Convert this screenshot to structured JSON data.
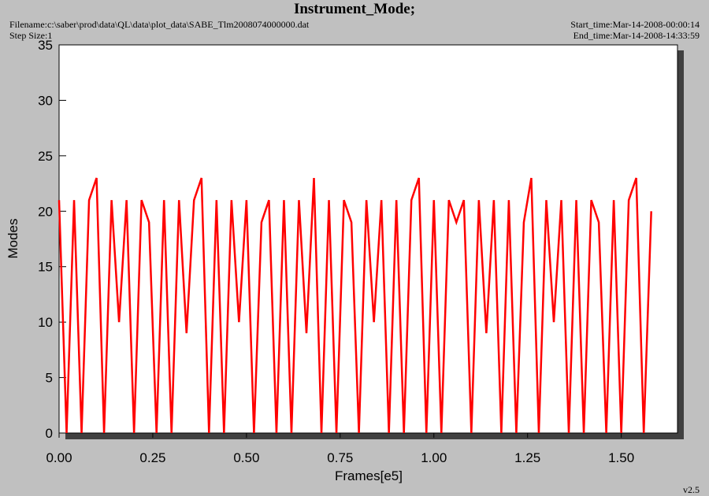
{
  "chart_data": {
    "type": "line",
    "title": "Instrument_Mode;",
    "filename": "Filename:c:\\saber\\prod\\data\\QL\\data\\plot_data\\SABE_Tlm2008074000000.dat",
    "step_size": "Step Size:1",
    "start_time": "Start_time:Mar-14-2008-00:00:14",
    "end_time": "End_time:Mar-14-2008-14:33:59",
    "version": "v2.5",
    "x_label": "Frames[e5]",
    "y_label": "Modes",
    "xlim": [
      0,
      1.65
    ],
    "ylim": [
      0,
      35
    ],
    "xticks": [
      {
        "value": 0,
        "label": "0.00"
      },
      0.25,
      {
        "value": 0.5,
        "label": "0.50"
      },
      0.75,
      {
        "value": 1,
        "label": "1.00"
      },
      1.25,
      {
        "value": 1.5,
        "label": "1.50"
      }
    ],
    "yticks": [
      0,
      5,
      10,
      15,
      20,
      25,
      30,
      35
    ],
    "x": [
      0,
      0.02,
      0.04,
      0.06,
      0.08,
      0.1,
      0.12,
      0.14,
      0.16,
      0.18,
      0.2,
      0.22,
      0.24,
      0.26,
      0.28,
      0.3,
      0.32,
      0.34,
      0.36,
      0.38,
      0.4,
      0.42,
      0.44,
      0.46,
      0.48,
      0.5,
      0.52,
      0.54,
      0.56,
      0.58,
      0.6,
      0.62,
      0.64,
      0.66,
      0.68,
      0.7,
      0.72,
      0.74,
      0.76,
      0.78,
      0.8,
      0.82,
      0.84,
      0.86,
      0.88,
      0.9,
      0.92,
      0.94,
      0.96,
      0.98,
      1,
      1.02,
      1.04,
      1.06,
      1.08,
      1.1,
      1.12,
      1.14,
      1.16,
      1.18,
      1.2,
      1.22,
      1.24,
      1.26,
      1.28,
      1.3,
      1.32,
      1.34,
      1.36,
      1.38,
      1.4,
      1.42,
      1.44,
      1.46,
      1.48,
      1.5,
      1.52,
      1.54,
      1.56,
      1.58
    ],
    "series": [
      {
        "name": "Instrument_Mode",
        "color": "#ff0000",
        "values": [
          21,
          0,
          21,
          0,
          21,
          23,
          0,
          21,
          10,
          21,
          0,
          21,
          19,
          0,
          21,
          0,
          21,
          9,
          21,
          23,
          0,
          21,
          0,
          21,
          10,
          21,
          0,
          19,
          21,
          0,
          21,
          0,
          21,
          9,
          23,
          0,
          21,
          0,
          21,
          19,
          0,
          21,
          10,
          21,
          0,
          21,
          0,
          21,
          23,
          0,
          21,
          0,
          21,
          19,
          21,
          0,
          21,
          9,
          21,
          0,
          21,
          0,
          19,
          23,
          0,
          21,
          10,
          21,
          0,
          21,
          0,
          21,
          19,
          0,
          21,
          0,
          21,
          23,
          0,
          20
        ]
      }
    ]
  }
}
